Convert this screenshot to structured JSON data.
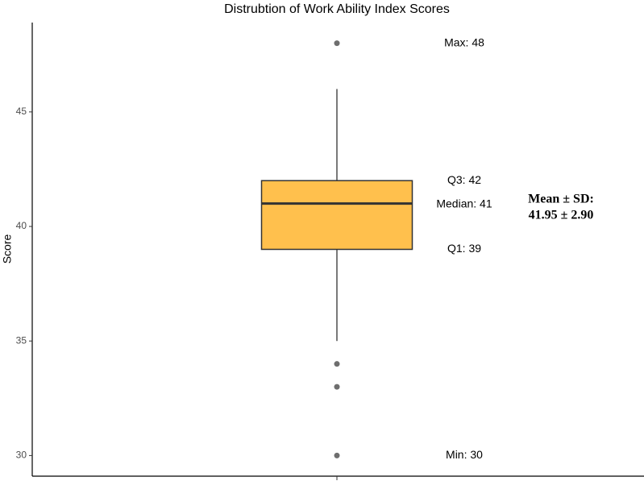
{
  "chart_data": {
    "type": "box",
    "title": "Distrubtion of Work Ability Index Scores",
    "ylabel": "Score",
    "ylim": [
      29.1,
      48.9
    ],
    "yticks": [
      30,
      35,
      40,
      45
    ],
    "color": "#ffc04d",
    "boxes": [
      {
        "whisker_low": 35,
        "q1": 39,
        "median": 41,
        "q3": 42,
        "whisker_high": 46,
        "outliers": [
          48,
          34,
          33,
          30
        ]
      }
    ],
    "annotations": [
      "Max: 48",
      "Q3: 42",
      "Median: 41",
      "Q1: 39",
      "Min: 30"
    ],
    "stats_label": [
      "Mean ± SD:",
      "41.95 ± 2.90"
    ]
  }
}
